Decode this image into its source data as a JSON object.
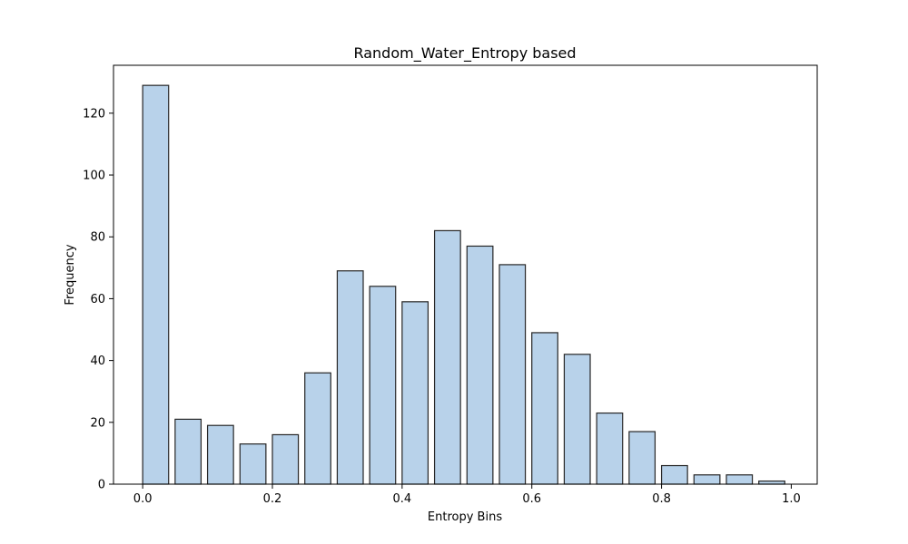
{
  "colors": {
    "bar_fill": "#b8d2ea",
    "bar_edge": "#262626",
    "axis": "#000000",
    "background": "#ffffff"
  },
  "chart_data": {
    "type": "bar",
    "title": "Random_Water_Entropy based",
    "xlabel": "Entropy Bins",
    "ylabel": "Frequency",
    "bin_width": 0.05,
    "bar_fraction_of_bin": 0.8,
    "bin_starts": [
      0.0,
      0.05,
      0.1,
      0.15,
      0.2,
      0.25,
      0.3,
      0.35,
      0.4,
      0.45,
      0.5,
      0.55,
      0.6,
      0.65,
      0.7,
      0.75,
      0.8,
      0.85,
      0.9,
      0.95
    ],
    "values": [
      129,
      21,
      19,
      13,
      16,
      36,
      69,
      64,
      59,
      82,
      77,
      71,
      49,
      42,
      23,
      17,
      6,
      3,
      3,
      1
    ],
    "xlim": [
      -0.045,
      1.04
    ],
    "ylim": [
      0,
      135.5
    ],
    "xticks": [
      0.0,
      0.2,
      0.4,
      0.6,
      0.8,
      1.0
    ],
    "xtick_labels": [
      "0.0",
      "0.2",
      "0.4",
      "0.6",
      "0.8",
      "1.0"
    ],
    "yticks": [
      0,
      20,
      40,
      60,
      80,
      100,
      120
    ],
    "ytick_labels": [
      "0",
      "20",
      "40",
      "60",
      "80",
      "100",
      "120"
    ],
    "grid": false,
    "legend": "none"
  }
}
